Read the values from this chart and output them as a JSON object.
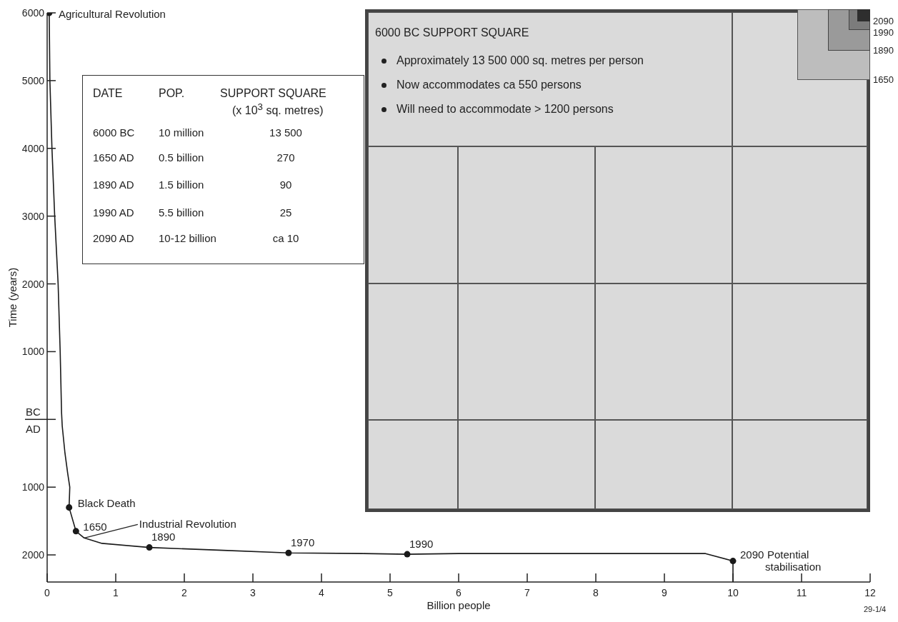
{
  "chart_data": {
    "type": "line",
    "xlabel": "Billion people",
    "ylabel": "Time (years)",
    "xlim": [
      0,
      12
    ],
    "xticks": [
      0,
      1,
      2,
      3,
      4,
      5,
      6,
      7,
      8,
      9,
      10,
      11,
      12
    ],
    "ylim": [
      2400,
      -6000
    ],
    "yticks": [
      {
        "value": -6000,
        "label": "6000"
      },
      {
        "value": -5000,
        "label": "5000"
      },
      {
        "value": -4000,
        "label": "4000"
      },
      {
        "value": -3000,
        "label": "3000"
      },
      {
        "value": -2000,
        "label": "2000"
      },
      {
        "value": -1000,
        "label": "1000"
      },
      {
        "value": 0,
        "label": null
      },
      1000,
      2000
    ],
    "series": [
      {
        "type": "line",
        "color": "#1a1a1a",
        "marker": "none",
        "x": [
          0.03,
          0.04,
          0.07,
          0.11,
          0.16,
          0.19,
          0.21,
          0.22,
          0.26,
          0.3,
          0.33,
          0.32,
          0.42,
          0.54,
          0.8,
          1.49,
          2.5,
          3.52,
          4.6,
          5.25,
          6,
          7.6,
          8.5,
          9.6,
          10,
          10
        ],
        "values": [
          -6000,
          -5000,
          -4000,
          -3000,
          -2000,
          -1000,
          -100,
          100,
          500,
          800,
          1000,
          1300,
          1650,
          1750,
          1830,
          1890,
          1930,
          1970,
          1980,
          1990,
          1980,
          1980,
          1980,
          1980,
          2090,
          2400
        ]
      },
      {
        "type": "scatter",
        "color": "#1a1a1a",
        "marker": "circle",
        "x": [
          0.03,
          0.32,
          0.42,
          1.49,
          3.52,
          5.25,
          10
        ],
        "values": [
          -6000,
          1300,
          1650,
          1890,
          1970,
          1990,
          2090
        ]
      }
    ],
    "annotations": [
      {
        "text": "Agricultural Revolution",
        "x": 0.03,
        "y": -6000
      },
      {
        "text": "Black Death",
        "x": 0.32,
        "y": 1300
      },
      {
        "text": "1650",
        "x": 0.42,
        "y": 1650
      },
      {
        "text": "Industrial Revolution",
        "x": 0.54,
        "y": 1750
      },
      {
        "text": "1890",
        "x": 1.49,
        "y": 1890
      },
      {
        "text": "1970",
        "x": 3.52,
        "y": 1970
      },
      {
        "text": "1990",
        "x": 5.25,
        "y": 1990
      },
      {
        "text": "2090",
        "x": 10,
        "y": 2090
      },
      {
        "text": "Potential stabilisation",
        "x": 10,
        "y": 2090
      },
      "BC",
      "AD",
      "DATE",
      "POP.",
      "SUPPORT SQUARE",
      "(x 10$^{3}$ sq. metres)",
      "6000 BC",
      "10 million",
      "13 500",
      "1650 AD",
      "0.5 billion",
      "270",
      "1890 AD",
      "1.5 billion",
      "90",
      "1990 AD",
      "5.5 billion",
      "25",
      "2090 AD",
      "10-12 billion",
      "ca 10",
      "6000 BC SUPPORT SQUARE",
      "Approximately 13 500 000 sq. metres per person",
      "Now accommodates ca 550 persons",
      "Will need to accommodate > 1200 persons",
      "2090",
      "1990",
      "1890",
      "1650",
      "29-1/4"
    ]
  }
}
